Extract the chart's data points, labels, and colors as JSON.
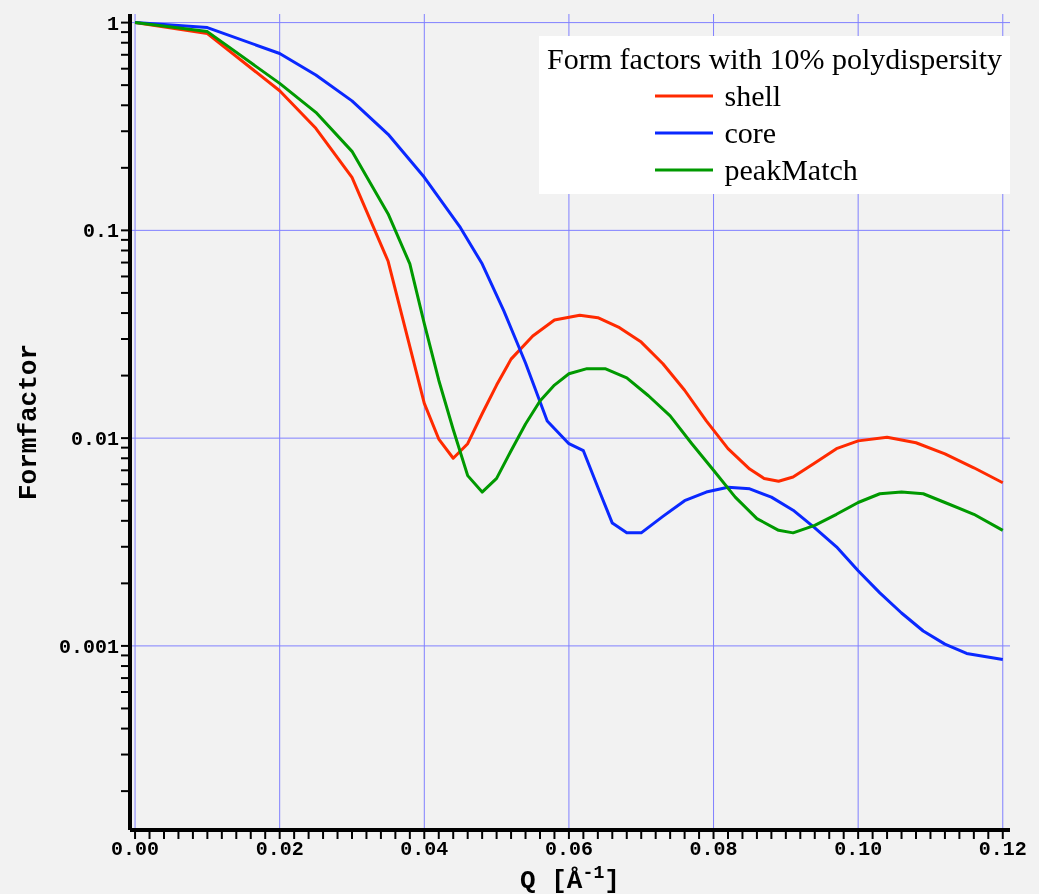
{
  "chart_data": {
    "type": "line",
    "xlabel": "Q [Å$^{-1}$]",
    "ylabel": "Formfactor",
    "legend_title": "Form factors with 10% polydispersity",
    "legend": "top right",
    "grid": true,
    "log": "y",
    "xlim": [
      -0.0007,
      0.121
    ],
    "xticks": [
      {
        "value": 0,
        "label": "0.00"
      },
      {
        "value": 0.002,
        "label": null
      },
      {
        "value": 0.004,
        "label": null
      },
      {
        "value": 0.006,
        "label": null
      },
      {
        "value": 0.008,
        "label": null
      },
      {
        "value": 0.01,
        "label": null
      },
      {
        "value": 0.012,
        "label": null
      },
      {
        "value": 0.014,
        "label": null
      },
      {
        "value": 0.016,
        "label": null
      },
      {
        "value": 0.018,
        "label": null
      },
      {
        "value": 0.02,
        "label": "0.02"
      },
      {
        "value": 0.022,
        "label": null
      },
      {
        "value": 0.024,
        "label": null
      },
      {
        "value": 0.026,
        "label": null
      },
      {
        "value": 0.028,
        "label": null
      },
      {
        "value": 0.03,
        "label": null
      },
      {
        "value": 0.032,
        "label": null
      },
      {
        "value": 0.034,
        "label": null
      },
      {
        "value": 0.036,
        "label": null
      },
      {
        "value": 0.038,
        "label": null
      },
      {
        "value": 0.04,
        "label": "0.04"
      },
      {
        "value": 0.042,
        "label": null
      },
      {
        "value": 0.044,
        "label": null
      },
      {
        "value": 0.046,
        "label": null
      },
      {
        "value": 0.048,
        "label": null
      },
      {
        "value": 0.05,
        "label": null
      },
      {
        "value": 0.052,
        "label": null
      },
      {
        "value": 0.054,
        "label": null
      },
      {
        "value": 0.056,
        "label": null
      },
      {
        "value": 0.058,
        "label": null
      },
      {
        "value": 0.06,
        "label": "0.06"
      },
      {
        "value": 0.062,
        "label": null
      },
      {
        "value": 0.064,
        "label": null
      },
      {
        "value": 0.066,
        "label": null
      },
      {
        "value": 0.068,
        "label": null
      },
      {
        "value": 0.07,
        "label": null
      },
      {
        "value": 0.072,
        "label": null
      },
      {
        "value": 0.074,
        "label": null
      },
      {
        "value": 0.076,
        "label": null
      },
      {
        "value": 0.078,
        "label": null
      },
      {
        "value": 0.08,
        "label": "0.08"
      },
      {
        "value": 0.082,
        "label": null
      },
      {
        "value": 0.084,
        "label": null
      },
      {
        "value": 0.086,
        "label": null
      },
      {
        "value": 0.088,
        "label": null
      },
      {
        "value": 0.09,
        "label": null
      },
      {
        "value": 0.092,
        "label": null
      },
      {
        "value": 0.094,
        "label": null
      },
      {
        "value": 0.096,
        "label": null
      },
      {
        "value": 0.098,
        "label": null
      },
      {
        "value": 0.1,
        "label": "0.10"
      },
      {
        "value": 0.102,
        "label": null
      },
      {
        "value": 0.104,
        "label": null
      },
      {
        "value": 0.106,
        "label": null
      },
      {
        "value": 0.108,
        "label": null
      },
      {
        "value": 0.11,
        "label": null
      },
      {
        "value": 0.112,
        "label": null
      },
      {
        "value": 0.114,
        "label": null
      },
      {
        "value": 0.116,
        "label": null
      },
      {
        "value": 0.118,
        "label": null
      },
      {
        "value": 0.12,
        "label": "0.12"
      }
    ],
    "ylim": [
      0.00013,
      1.1
    ],
    "yticks": [
      {
        "value": 0.0002,
        "label": null
      },
      {
        "value": 0.0003,
        "label": null
      },
      {
        "value": 0.0004,
        "label": null
      },
      {
        "value": 0.0005,
        "label": null
      },
      {
        "value": 0.0006,
        "label": null
      },
      {
        "value": 0.0007,
        "label": null
      },
      {
        "value": 0.0008,
        "label": null
      },
      {
        "value": 0.0009,
        "label": null
      },
      0.001,
      {
        "value": 0.002,
        "label": null
      },
      {
        "value": 0.003,
        "label": null
      },
      {
        "value": 0.004,
        "label": null
      },
      {
        "value": 0.005,
        "label": null
      },
      {
        "value": 0.006,
        "label": null
      },
      {
        "value": 0.007,
        "label": null
      },
      {
        "value": 0.008,
        "label": null
      },
      {
        "value": 0.009,
        "label": null
      },
      0.01,
      {
        "value": 0.02,
        "label": null
      },
      {
        "value": 0.03,
        "label": null
      },
      {
        "value": 0.04,
        "label": null
      },
      {
        "value": 0.05,
        "label": null
      },
      {
        "value": 0.06,
        "label": null
      },
      {
        "value": 0.07,
        "label": null
      },
      {
        "value": 0.08,
        "label": null
      },
      {
        "value": 0.09,
        "label": null
      },
      0.1,
      {
        "value": 0.2,
        "label": null
      },
      {
        "value": 0.3,
        "label": null
      },
      {
        "value": 0.4,
        "label": null
      },
      {
        "value": 0.5,
        "label": null
      },
      {
        "value": 0.6,
        "label": null
      },
      {
        "value": 0.7,
        "label": null
      },
      {
        "value": 0.8,
        "label": null
      },
      {
        "value": 0.9,
        "label": null
      },
      1
    ],
    "series": [
      {
        "name": "shell",
        "color": "#ff2a00",
        "x": [
          0,
          0.01,
          0.02,
          0.025,
          0.03,
          0.035,
          0.04,
          0.042,
          0.044,
          0.046,
          0.048,
          0.05,
          0.052,
          0.055,
          0.058,
          0.0615,
          0.064,
          0.067,
          0.07,
          0.073,
          0.076,
          0.079,
          0.082,
          0.085,
          0.087,
          0.089,
          0.091,
          0.094,
          0.097,
          0.1,
          0.104,
          0.108,
          0.112,
          0.116,
          0.12
        ],
        "values": [
          1,
          0.885,
          0.47,
          0.31,
          0.18,
          0.071,
          0.0147,
          0.0099,
          0.008,
          0.0094,
          0.0131,
          0.018,
          0.024,
          0.031,
          0.037,
          0.039,
          0.038,
          0.034,
          0.029,
          0.0228,
          0.017,
          0.0121,
          0.0089,
          0.0071,
          0.0064,
          0.0062,
          0.0065,
          0.0076,
          0.0089,
          0.0097,
          0.0101,
          0.0095,
          0.0084,
          0.0072,
          0.0061
        ]
      },
      {
        "name": "core",
        "color": "#0a28ff",
        "x": [
          0,
          0.01,
          0.02,
          0.025,
          0.03,
          0.035,
          0.04,
          0.045,
          0.048,
          0.051,
          0.054,
          0.057,
          0.06,
          0.062,
          0.064,
          0.066,
          0.068,
          0.07,
          0.073,
          0.076,
          0.079,
          0.082,
          0.085,
          0.088,
          0.091,
          0.094,
          0.097,
          0.1,
          0.103,
          0.106,
          0.109,
          0.112,
          0.115,
          0.12
        ],
        "values": [
          1,
          0.946,
          0.71,
          0.56,
          0.42,
          0.29,
          0.18,
          0.103,
          0.069,
          0.041,
          0.023,
          0.0121,
          0.0094,
          0.0087,
          0.0058,
          0.0039,
          0.0035,
          0.0035,
          0.0042,
          0.005,
          0.0055,
          0.0058,
          0.0057,
          0.0052,
          0.0045,
          0.0037,
          0.003,
          0.0023,
          0.0018,
          0.00144,
          0.00118,
          0.00102,
          0.00092,
          0.00086
        ]
      },
      {
        "name": "peakMatch",
        "color": "#009900",
        "x": [
          0,
          0.01,
          0.02,
          0.025,
          0.03,
          0.035,
          0.038,
          0.04,
          0.042,
          0.044,
          0.046,
          0.048,
          0.05,
          0.052,
          0.054,
          0.056,
          0.058,
          0.06,
          0.0625,
          0.065,
          0.068,
          0.071,
          0.074,
          0.077,
          0.08,
          0.083,
          0.086,
          0.089,
          0.091,
          0.094,
          0.097,
          0.1,
          0.103,
          0.106,
          0.109,
          0.112,
          0.116,
          0.12
        ],
        "values": [
          1,
          0.905,
          0.51,
          0.37,
          0.24,
          0.12,
          0.069,
          0.0356,
          0.019,
          0.011,
          0.0066,
          0.0055,
          0.0064,
          0.0087,
          0.0117,
          0.0151,
          0.018,
          0.0204,
          0.0216,
          0.0216,
          0.0195,
          0.016,
          0.0128,
          0.0094,
          0.007,
          0.0052,
          0.0041,
          0.0036,
          0.0035,
          0.0038,
          0.0043,
          0.0049,
          0.0054,
          0.0055,
          0.0054,
          0.0049,
          0.0043,
          0.0036
        ]
      }
    ]
  }
}
